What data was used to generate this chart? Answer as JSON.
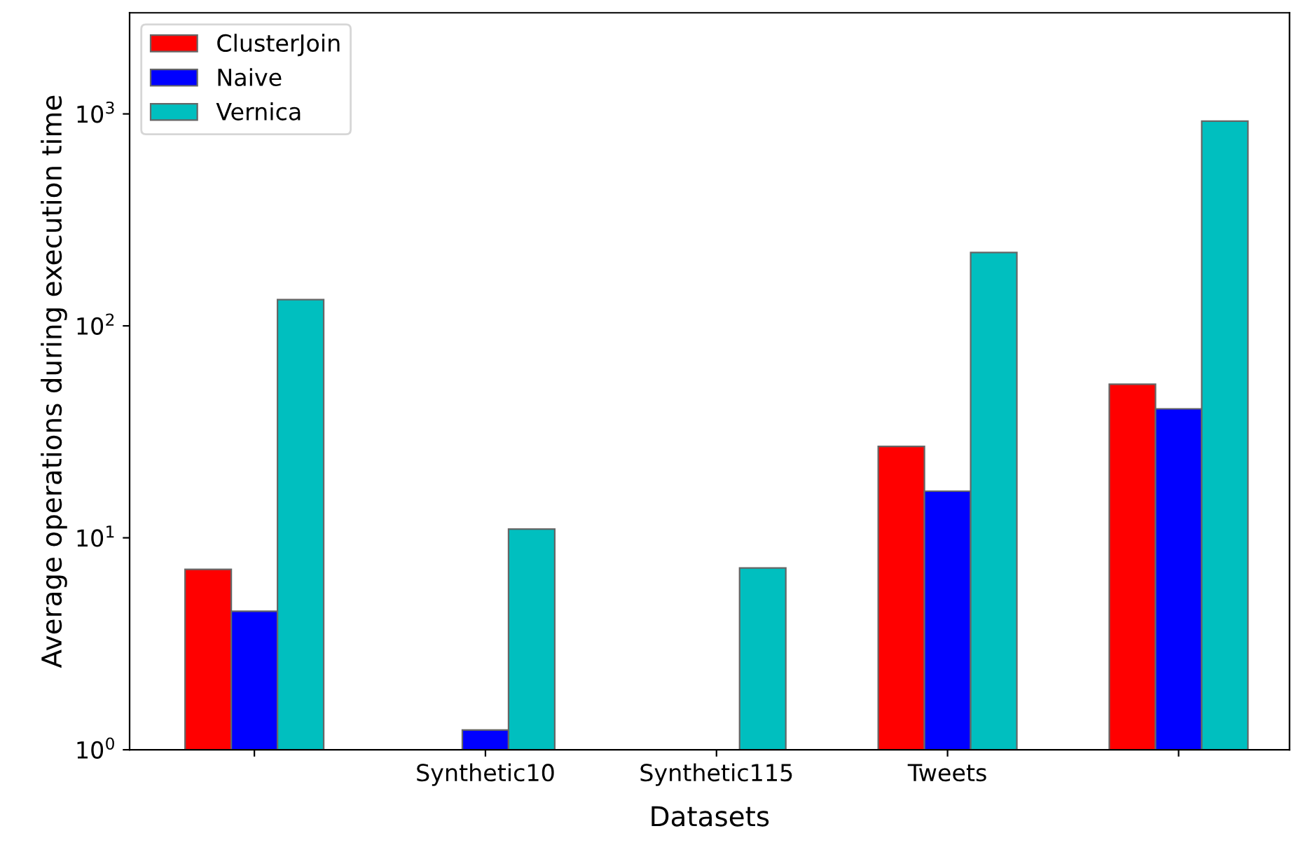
{
  "chart_data": {
    "type": "bar",
    "xlabel": "Datasets",
    "ylabel": "Average operations during execution time",
    "categories": [
      null,
      "Synthetic10",
      "Synthetic115",
      "Tweets",
      null
    ],
    "series": [
      {
        "name": "ClusterJoin",
        "color": "#ff0000",
        "values": [
          7.1,
          null,
          null,
          27,
          53
        ]
      },
      {
        "name": "Naive",
        "color": "#0000ff",
        "values": [
          4.5,
          1.24,
          null,
          16.6,
          40.6
        ]
      },
      {
        "name": "Vernica",
        "color": "#00bfbf",
        "values": [
          133,
          11,
          7.2,
          222,
          925
        ]
      }
    ],
    "log": "y",
    "ylim": [
      1,
      3000
    ],
    "yticks": [
      {
        "value": 1,
        "label": "10$^{0}$"
      },
      {
        "value": 10,
        "label": "10$^{1}$"
      },
      {
        "value": 100,
        "label": "10$^{2}$"
      },
      {
        "value": 1000,
        "label": "10$^{3}$"
      }
    ],
    "grid": false,
    "legend": "top left"
  }
}
